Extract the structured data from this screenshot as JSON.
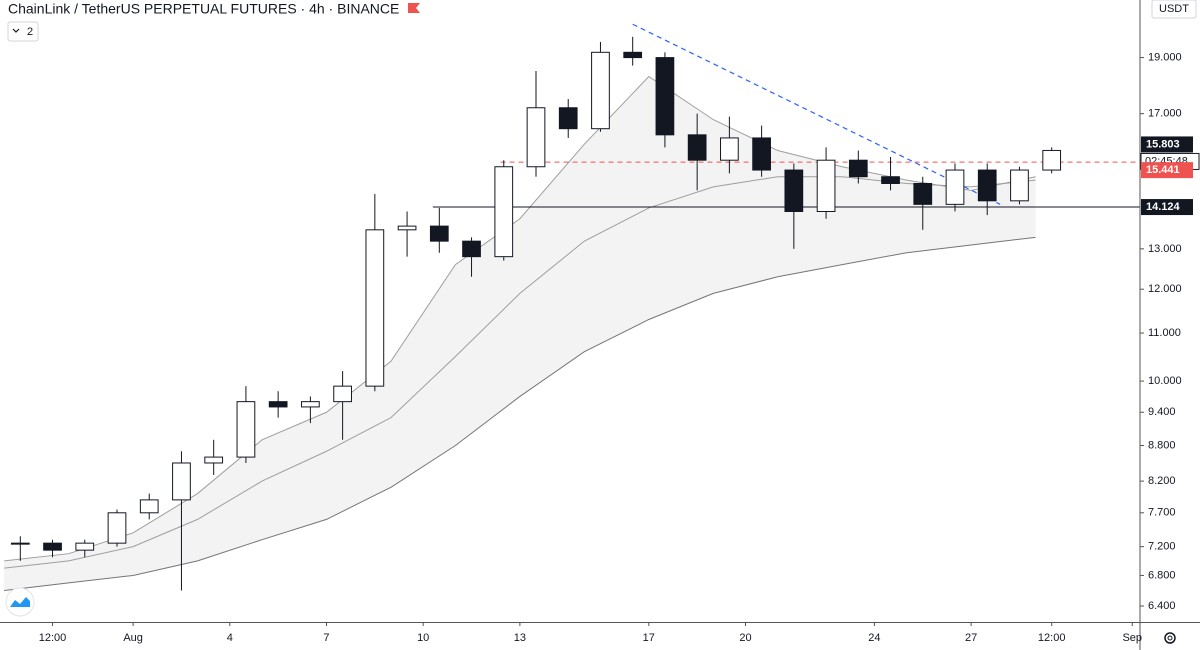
{
  "chart_data": {
    "type": "candlestick",
    "title": "ChainLink / TetherUS PERPETUAL FUTURES · 4h · BINANCE",
    "indicators_label": "2",
    "currency": "USDT",
    "countdown": "02:45:48",
    "log_scale": true,
    "up_color": "#ffffff",
    "down_color": "#131722",
    "x": [
      -2.5,
      -1.5,
      -0.5,
      0.5,
      1.5,
      2.5,
      3.5,
      4.5,
      5.5,
      6.5,
      7.5,
      8.5,
      9.5,
      10.5,
      11.5,
      12.5,
      13.5,
      14.5,
      15.5,
      16.5,
      17.5,
      18.5,
      19.5,
      20.5,
      21.5,
      22.5,
      23.5,
      24.5,
      25.5,
      26.5,
      27.5,
      28.5,
      29.5
    ],
    "open": [
      7.25,
      7.25,
      7.15,
      7.25,
      7.7,
      7.9,
      8.5,
      8.6,
      9.6,
      9.5,
      9.6,
      9.9,
      13.5,
      13.6,
      13.2,
      12.8,
      15.3,
      17.2,
      16.5,
      19.2,
      19.0,
      16.3,
      15.5,
      16.2,
      15.2,
      14.0,
      15.5,
      15.0,
      14.8,
      14.2,
      15.2,
      14.3,
      15.2
    ],
    "high": [
      7.35,
      7.3,
      7.3,
      7.75,
      8.0,
      8.7,
      8.9,
      9.9,
      9.8,
      9.7,
      10.2,
      14.5,
      14.0,
      14.1,
      13.3,
      15.5,
      18.5,
      17.5,
      19.6,
      19.8,
      19.2,
      17.0,
      16.9,
      16.6,
      15.4,
      15.9,
      15.8,
      15.6,
      15.0,
      15.4,
      15.4,
      15.3,
      15.9
    ],
    "low": [
      7.0,
      7.05,
      7.05,
      7.2,
      7.6,
      6.6,
      8.3,
      8.5,
      9.3,
      9.2,
      8.9,
      9.8,
      12.8,
      12.9,
      12.3,
      12.7,
      15.0,
      16.2,
      16.4,
      18.7,
      15.9,
      14.6,
      15.1,
      15.0,
      13.0,
      13.8,
      14.8,
      14.6,
      13.5,
      14.0,
      13.9,
      14.2,
      15.1
    ],
    "close": [
      7.25,
      7.15,
      7.25,
      7.7,
      7.9,
      8.5,
      8.6,
      9.6,
      9.5,
      9.6,
      9.9,
      13.5,
      13.6,
      13.2,
      12.8,
      15.3,
      17.2,
      16.5,
      19.2,
      19.0,
      16.3,
      15.5,
      16.2,
      15.2,
      14.0,
      15.5,
      15.0,
      14.8,
      14.2,
      15.2,
      14.3,
      15.2,
      15.803
    ],
    "series": [
      {
        "color": "#9e9e9e",
        "x": [
          -3,
          -1,
          1,
          3,
          5,
          7,
          9,
          11,
          13,
          15,
          17,
          19,
          21,
          23,
          25,
          27,
          29
        ],
        "values": [
          7.0,
          7.1,
          7.4,
          8.0,
          8.9,
          9.4,
          10.4,
          12.6,
          13.8,
          16.0,
          18.3,
          16.8,
          15.8,
          15.3,
          14.9,
          14.6,
          15.0
        ]
      },
      {
        "color": "#9e9e9e",
        "x": [
          -3,
          -1,
          1,
          3,
          5,
          7,
          9,
          11,
          13,
          15,
          17,
          19,
          21,
          23,
          25,
          27,
          29
        ],
        "values": [
          6.9,
          7.0,
          7.2,
          7.6,
          8.2,
          8.7,
          9.3,
          10.5,
          11.9,
          13.2,
          14.1,
          14.7,
          15.0,
          15.0,
          14.8,
          14.7,
          14.9
        ]
      },
      {
        "color": "#757575",
        "x": [
          -3,
          -1,
          1,
          3,
          5,
          7,
          9,
          11,
          13,
          15,
          17,
          19,
          21,
          23,
          25,
          27,
          29
        ],
        "values": [
          6.6,
          6.7,
          6.8,
          7.0,
          7.3,
          7.6,
          8.1,
          8.8,
          9.7,
          10.6,
          11.3,
          11.9,
          12.3,
          12.6,
          12.9,
          13.1,
          13.3
        ]
      }
    ],
    "area_fill": "#f3f3f3",
    "levels": [
      {
        "value": 14.124,
        "start_x": 10.3,
        "color": "#131722",
        "style": "solid"
      },
      {
        "value": 15.441,
        "start_x": 12.4,
        "color": "#ef5350",
        "style": "dashed"
      }
    ],
    "last_price": 15.803,
    "trendline": {
      "x": [
        16.5,
        27.9
      ],
      "values": [
        20.3,
        14.2
      ],
      "color": "#2962ff"
    },
    "xlim": [
      -3.13,
      32.24
    ],
    "ylim": [
      6.2,
      21.3
    ],
    "xticks": [
      {
        "value": -1.5,
        "label": "12:00"
      },
      {
        "value": 1,
        "label": "Aug"
      },
      4,
      7,
      10,
      13,
      17,
      20,
      24,
      27,
      {
        "value": 29.5,
        "label": "12:00"
      },
      {
        "value": 32,
        "label": "Sep"
      }
    ],
    "yticks": [
      {
        "value": 6.4,
        "label": "6.400"
      },
      {
        "value": 6.8,
        "label": "6.800"
      },
      {
        "value": 7.2,
        "label": "7.200"
      },
      {
        "value": 7.7,
        "label": "7.700"
      },
      {
        "value": 8.2,
        "label": "8.200"
      },
      {
        "value": 8.8,
        "label": "8.800"
      },
      {
        "value": 9.4,
        "label": "9.400"
      },
      {
        "value": 10,
        "label": "10.000"
      },
      {
        "value": 11,
        "label": "11.000"
      },
      {
        "value": 12,
        "label": "12.000"
      },
      {
        "value": 13,
        "label": "13.000"
      },
      {
        "value": 17,
        "label": "17.000"
      },
      {
        "value": 19,
        "label": "19.000"
      }
    ]
  }
}
